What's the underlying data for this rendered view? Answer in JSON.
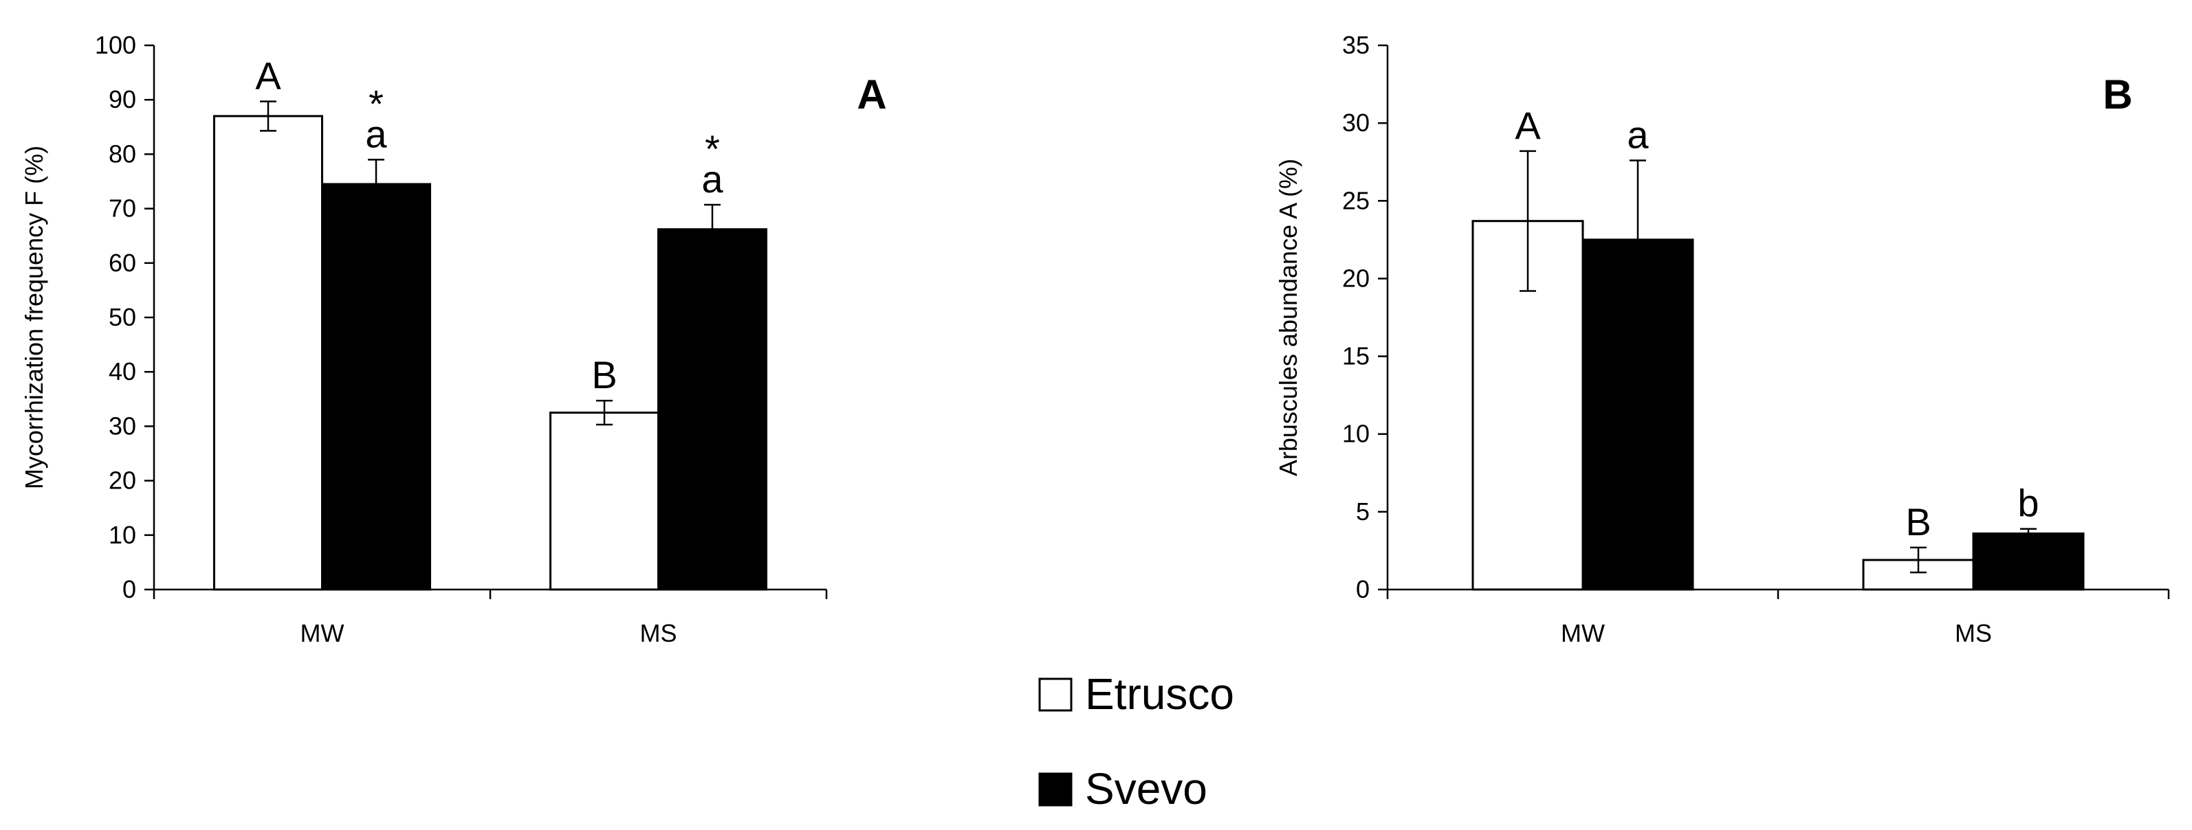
{
  "chart_data": [
    {
      "type": "bar",
      "panel_label": "A",
      "categories": [
        "MW",
        "MS"
      ],
      "ylabel": "Mycorrhization frequency F (%)",
      "xlabel": "",
      "ylim": [
        0,
        100
      ],
      "yticks": [
        0,
        10,
        20,
        30,
        40,
        50,
        60,
        70,
        80,
        90,
        100
      ],
      "series": [
        {
          "name": "Etrusco",
          "values": [
            87.0,
            32.5
          ],
          "errors": [
            2.7,
            2.2
          ],
          "letters": [
            "A",
            "B"
          ],
          "asterisks": [
            "",
            ""
          ]
        },
        {
          "name": "Svevo",
          "values": [
            74.5,
            66.2
          ],
          "errors": [
            4.5,
            4.5
          ],
          "letters": [
            "a",
            "a"
          ],
          "asterisks": [
            "*",
            "*"
          ]
        }
      ]
    },
    {
      "type": "bar",
      "panel_label": "B",
      "categories": [
        "MW",
        "MS"
      ],
      "ylabel": "Arbuscules abundance A (%)",
      "xlabel": "",
      "ylim": [
        0,
        35
      ],
      "yticks": [
        0,
        5,
        10,
        15,
        20,
        25,
        30,
        35
      ],
      "series": [
        {
          "name": "Etrusco",
          "values": [
            23.7,
            1.9
          ],
          "errors": [
            4.5,
            0.8
          ],
          "letters": [
            "A",
            "B"
          ],
          "asterisks": [
            "",
            ""
          ]
        },
        {
          "name": "Svevo",
          "values": [
            22.5,
            3.6
          ],
          "errors": [
            5.1,
            0.3
          ],
          "letters": [
            "a",
            "b"
          ],
          "asterisks": [
            "",
            ""
          ]
        }
      ]
    }
  ],
  "legend": {
    "items": [
      {
        "label": "Etrusco",
        "color": "#ffffff"
      },
      {
        "label": "Svevo",
        "color": "#000000"
      }
    ]
  },
  "colors": {
    "Etrusco": "#ffffff",
    "Svevo": "#000000",
    "stroke": "#000000"
  }
}
